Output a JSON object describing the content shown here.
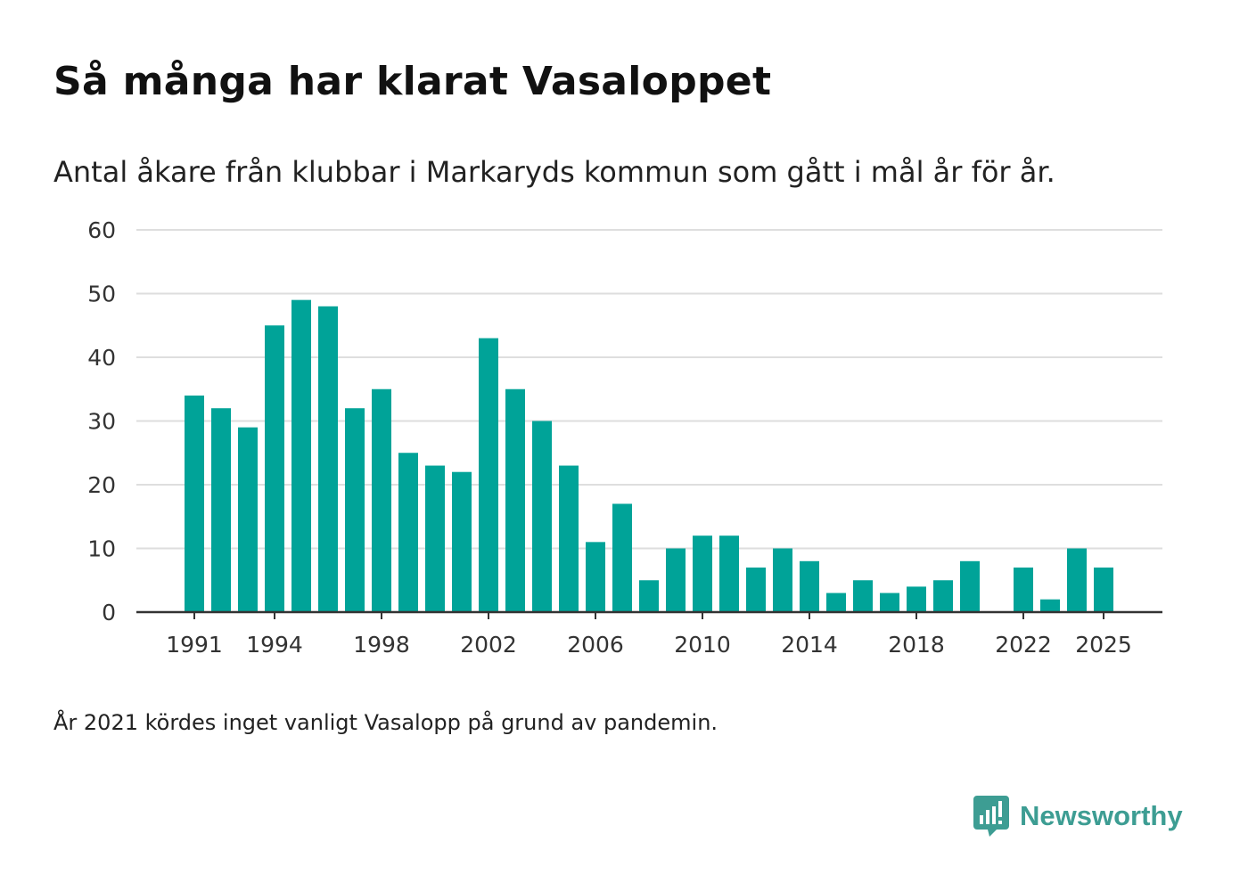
{
  "chart_data": {
    "type": "bar",
    "title": "Så många har klarat Vasaloppet",
    "subtitle": "Antal åkare från klubbar i Markaryds kommun som gått i mål år för år.",
    "xlabel": "",
    "ylabel": "",
    "ylim": [
      0,
      60
    ],
    "yticks": [
      0,
      10,
      20,
      30,
      40,
      50,
      60
    ],
    "xtick_labels": [
      "1991",
      "1994",
      "1998",
      "2002",
      "2006",
      "2010",
      "2014",
      "2018",
      "2022",
      "2025"
    ],
    "grid": true,
    "bar_color": "#00a398",
    "categories": [
      1991,
      1992,
      1993,
      1994,
      1995,
      1996,
      1997,
      1998,
      1999,
      2000,
      2001,
      2002,
      2003,
      2004,
      2005,
      2006,
      2007,
      2008,
      2009,
      2010,
      2011,
      2012,
      2013,
      2014,
      2015,
      2016,
      2017,
      2018,
      2019,
      2020,
      2021,
      2022,
      2023,
      2024,
      2025
    ],
    "values": [
      34,
      32,
      29,
      45,
      49,
      48,
      32,
      35,
      25,
      23,
      22,
      43,
      35,
      30,
      23,
      11,
      17,
      5,
      10,
      12,
      12,
      7,
      10,
      8,
      3,
      5,
      3,
      4,
      5,
      8,
      null,
      7,
      2,
      10,
      7
    ]
  },
  "footnote": "År 2021 kördes inget vanligt Vasalopp på grund av pandemin.",
  "brand": {
    "name": "Newsworthy",
    "color": "#3d9d93",
    "icon": "newsworthy-logo-icon"
  }
}
